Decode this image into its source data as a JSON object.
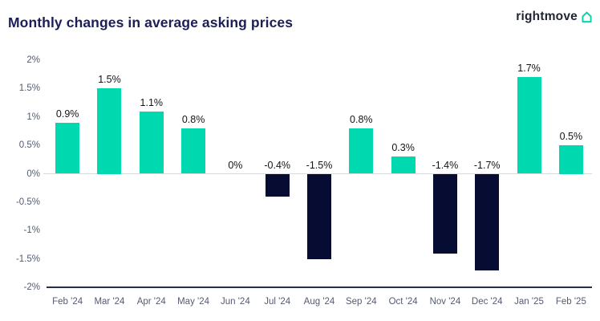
{
  "header": {
    "title": "Monthly changes in average asking prices",
    "logo_text": "rightmove",
    "logo_icon": "house-icon"
  },
  "colors": {
    "positive_bar": "#00d8b0",
    "negative_bar": "#070d32",
    "title_text": "#1b1f55",
    "logo_text": "#1f2430",
    "logo_teal": "#00d8b0",
    "axis_text": "#555b70",
    "value_label": "#141414",
    "zero_line": "#d8dadc",
    "baseline": "#2a2e4d",
    "background": "#ffffff"
  },
  "chart_data": {
    "type": "bar",
    "title": "Monthly changes in average asking prices",
    "categories": [
      "Feb '24",
      "Mar '24",
      "Apr '24",
      "May '24",
      "Jun '24",
      "Jul '24",
      "Aug '24",
      "Sep '24",
      "Oct '24",
      "Nov '24",
      "Dec '24",
      "Jan '25",
      "Feb '25"
    ],
    "values": [
      0.9,
      1.5,
      1.1,
      0.8,
      0,
      -0.4,
      -1.5,
      0.8,
      0.3,
      -1.4,
      -1.7,
      1.7,
      0.5
    ],
    "value_labels": [
      "0.9%",
      "1.5%",
      "1.1%",
      "0.8%",
      "0%",
      "-0.4%",
      "-1.5%",
      "0.8%",
      "0.3%",
      "-1.4%",
      "-1.7%",
      "1.7%",
      "0.5%"
    ],
    "xlabel": "",
    "ylabel": "",
    "ylim": [
      -2,
      2
    ],
    "yticks": [
      2,
      1.5,
      1,
      0.5,
      0,
      -0.5,
      -1,
      -1.5,
      -2
    ],
    "ytick_labels": [
      "2%",
      "1.5%",
      "1%",
      "0.5%",
      "0%",
      "-0.5%",
      "-1%",
      "-1.5%",
      "-2%"
    ],
    "grid": "zero-line-only",
    "legend": "none",
    "bar_color_rule": "positive=teal, negative=dark-navy, zero=no-bar"
  }
}
